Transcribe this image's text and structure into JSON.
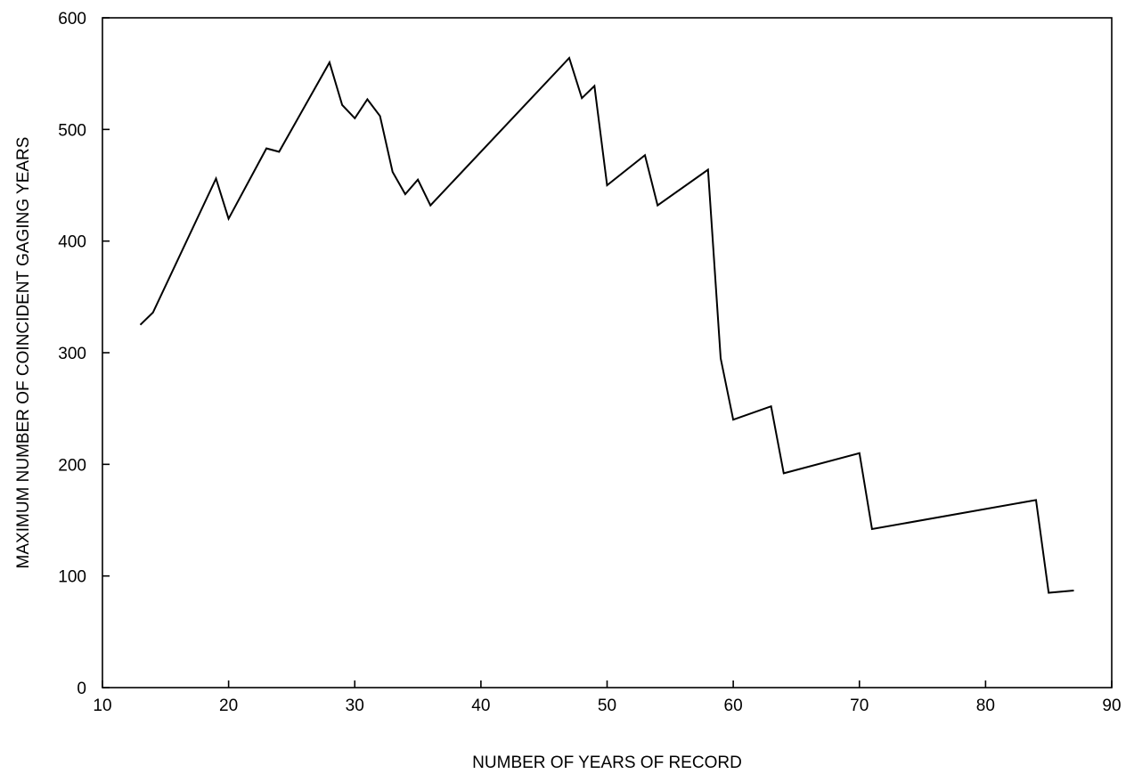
{
  "chart_data": {
    "type": "line",
    "title": "",
    "xlabel": "NUMBER OF YEARS OF RECORD",
    "ylabel": "MAXIMUM NUMBER OF COINCIDENT GAGING YEARS",
    "xlim": [
      10,
      90
    ],
    "ylim": [
      0,
      600
    ],
    "xticks": [
      10,
      20,
      30,
      40,
      50,
      60,
      70,
      80,
      90
    ],
    "yticks": [
      0,
      100,
      200,
      300,
      400,
      500,
      600
    ],
    "grid": false,
    "legend": "none",
    "line_color": "#000000",
    "series": [
      {
        "x": [
          13,
          14,
          19,
          20,
          23,
          24,
          28,
          29,
          30,
          31,
          32,
          33,
          34,
          35,
          36,
          47,
          48,
          49,
          50,
          53,
          54,
          58,
          59,
          60,
          63,
          64,
          70,
          71,
          84,
          85,
          87
        ],
        "y": [
          325,
          336,
          456,
          420,
          483,
          480,
          560,
          522,
          510,
          527,
          512,
          462,
          442,
          455,
          432,
          564,
          528,
          539,
          450,
          477,
          432,
          464,
          295,
          240,
          252,
          192,
          210,
          142,
          168,
          85,
          87
        ]
      }
    ]
  }
}
